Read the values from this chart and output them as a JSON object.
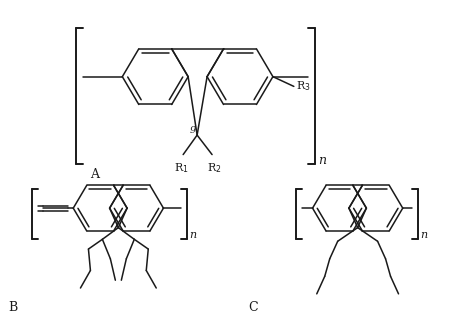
{
  "background_color": "#ffffff",
  "line_color": "#1a1a1a",
  "lw": 1.1,
  "lw_bracket": 1.4,
  "fig_width": 4.74,
  "fig_height": 3.16,
  "dpi": 100,
  "label_A": "A",
  "label_B": "B",
  "label_C": "C",
  "label_n": "n",
  "label_R1": "R",
  "label_R2": "R",
  "label_R3": "R",
  "label_9": "9"
}
